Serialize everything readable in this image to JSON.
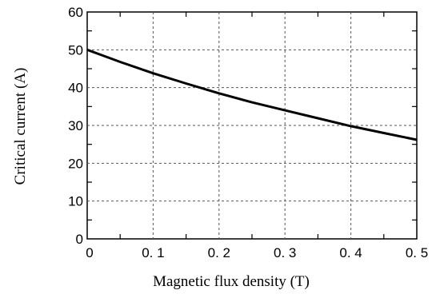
{
  "chart_data": {
    "type": "line",
    "title": "",
    "xlabel": "Magnetic flux density (T)",
    "ylabel": "Critical current (A)",
    "xlim": [
      0,
      0.5
    ],
    "ylim": [
      0,
      60
    ],
    "x_ticks": [
      0,
      0.1,
      0.2,
      0.3,
      0.4,
      0.5
    ],
    "x_tick_labels": [
      "0",
      "0. 1",
      "0. 2",
      "0. 3",
      "0. 4",
      "0. 5"
    ],
    "y_ticks": [
      0,
      10,
      20,
      30,
      40,
      50,
      60
    ],
    "y_tick_labels": [
      "0",
      "10",
      "20",
      "30",
      "40",
      "50",
      "60"
    ],
    "grid": true,
    "grid_style": "dashed",
    "series": [
      {
        "color": "#000000",
        "x": [
          0,
          0.05,
          0.1,
          0.15,
          0.2,
          0.25,
          0.3,
          0.35,
          0.4,
          0.45,
          0.5
        ],
        "y": [
          50,
          46.8,
          43.8,
          41.1,
          38.5,
          36.1,
          34,
          31.9,
          29.8,
          28,
          26.2
        ]
      }
    ]
  }
}
